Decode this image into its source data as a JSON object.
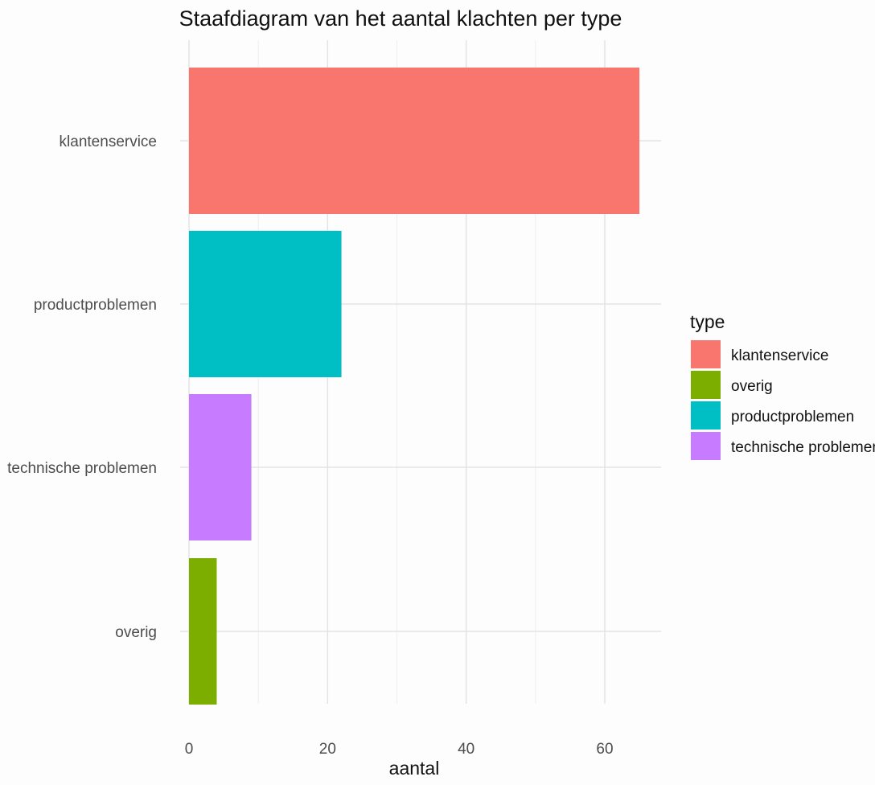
{
  "chart_data": {
    "type": "bar",
    "orientation": "horizontal",
    "title": "Staafdiagram van het aantal klachten per type",
    "xlabel": "aantal",
    "ylabel": "",
    "categories": [
      "klantenservice",
      "productproblemen",
      "technische problemen",
      "overig"
    ],
    "values": [
      65,
      22,
      9,
      4
    ],
    "xlim": [
      0,
      68
    ],
    "xticks": [
      0,
      20,
      40,
      60
    ],
    "grid": true,
    "legend": {
      "title": "type",
      "placement": "right",
      "entries": [
        {
          "label": "klantenservice",
          "color": "#F8766D"
        },
        {
          "label": "overig",
          "color": "#7CAE00"
        },
        {
          "label": "productproblemen",
          "color": "#00BFC4"
        },
        {
          "label": "technische problemen",
          "color": "#C77CFF"
        }
      ]
    },
    "colors": {
      "klantenservice": "#F8766D",
      "productproblemen": "#00BFC4",
      "technische problemen": "#C77CFF",
      "overig": "#7CAE00"
    }
  }
}
